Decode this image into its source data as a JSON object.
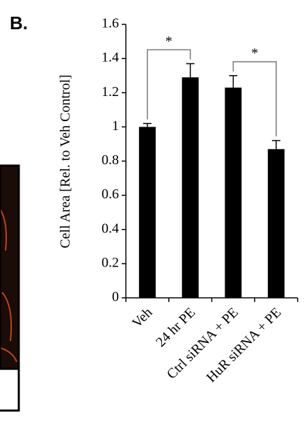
{
  "panel_label": "B.",
  "chart_data": {
    "type": "bar",
    "ylabel": "Cell Area [Rel. to Veh Control]",
    "categories": [
      "Veh",
      "24 hr PE",
      "Ctrl siRNA + PE",
      "HuR siRNA + PE"
    ],
    "values": [
      1.0,
      1.29,
      1.23,
      0.87
    ],
    "errors": [
      0.02,
      0.08,
      0.07,
      0.05
    ],
    "color": "#000000",
    "ylim": [
      0,
      1.6
    ],
    "yticks": [
      0,
      0.2,
      0.4,
      0.6,
      0.8,
      1,
      1.2,
      1.4,
      1.6
    ],
    "annotations": [
      {
        "label": "*",
        "between": [
          0,
          1
        ]
      },
      {
        "label": "*",
        "between": [
          2,
          3
        ]
      }
    ]
  }
}
